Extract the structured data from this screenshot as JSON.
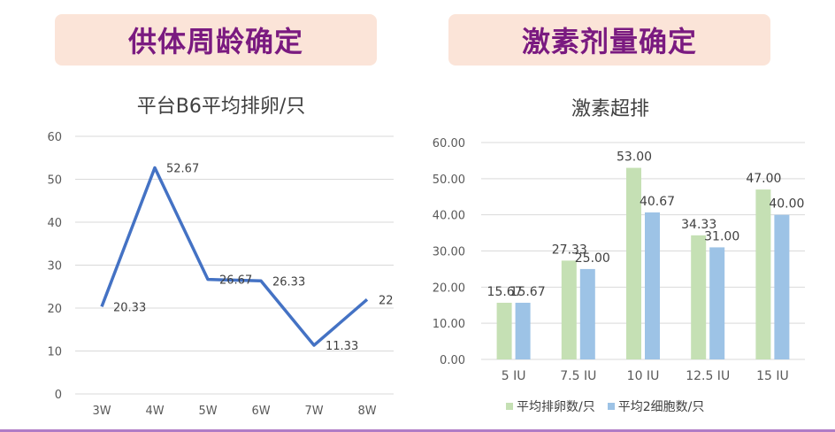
{
  "banners": {
    "left": "供体周龄确定",
    "right": "激素剂量确定"
  },
  "colors": {
    "banner_bg": "#fbe4d8",
    "banner_text": "#7a1a80",
    "line": "#4472c4",
    "bar_green": "#c5e0b4",
    "bar_blue": "#9dc3e6"
  },
  "chart_data": [
    {
      "type": "line",
      "title": "平台B6平均排卵/只",
      "categories": [
        "3W",
        "4W",
        "5W",
        "6W",
        "7W",
        "8W"
      ],
      "values": [
        20.33,
        52.67,
        26.67,
        26.33,
        11.33,
        22
      ],
      "data_labels": [
        "20.33",
        "52.67",
        "26.67",
        "26.33",
        "11.33",
        "22"
      ],
      "ylim": [
        0,
        60
      ],
      "yticks": [
        "0",
        "10",
        "20",
        "30",
        "40",
        "50",
        "60"
      ],
      "grid": true,
      "legend": "none"
    },
    {
      "type": "bar",
      "title": "激素超排",
      "categories": [
        "5 IU",
        "7.5 IU",
        "10 IU",
        "12.5 IU",
        "15 IU"
      ],
      "series": [
        {
          "name": "平均排卵数/只",
          "values": [
            15.67,
            27.33,
            53.0,
            34.33,
            47.0
          ],
          "labels": [
            "15.67",
            "27.33",
            "53.00",
            "34.33",
            "47.00"
          ]
        },
        {
          "name": "平均2细胞数/只",
          "values": [
            15.67,
            25.0,
            40.67,
            31.0,
            40.0
          ],
          "labels": [
            "15.67",
            "25.00",
            "40.67",
            "31.00",
            "40.00"
          ]
        }
      ],
      "ylim": [
        0,
        60
      ],
      "yticks": [
        "0.00",
        "10.00",
        "20.00",
        "30.00",
        "40.00",
        "50.00",
        "60.00"
      ],
      "grid": true,
      "legend": "bottom"
    }
  ]
}
